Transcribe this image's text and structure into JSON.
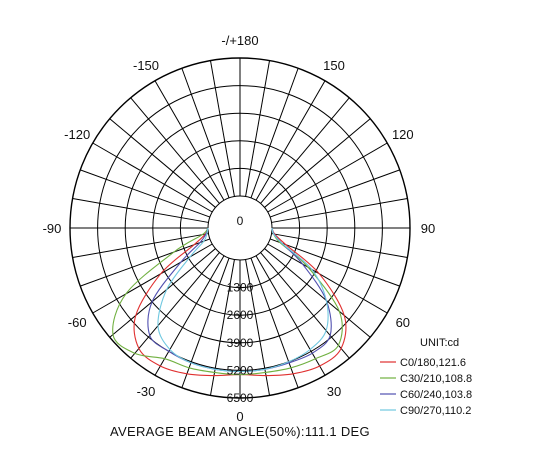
{
  "chart_data": {
    "type": "polar",
    "title": "",
    "unit_label": "UNIT:cd",
    "footer": "AVERAGE BEAM ANGLE(50%):111.1 DEG",
    "radial_ticks": [
      1300,
      2600,
      3900,
      5200,
      6500
    ],
    "radial_tick_labels": [
      "1300",
      "2600",
      "3900",
      "5200",
      "6500"
    ],
    "rmax": 6500,
    "angle_labels": [
      {
        "angle": 0,
        "label": "0"
      },
      {
        "angle": 30,
        "label": "30"
      },
      {
        "angle": -30,
        "label": "-30"
      },
      {
        "angle": 60,
        "label": "60"
      },
      {
        "angle": -60,
        "label": "-60"
      },
      {
        "angle": 90,
        "label": "90"
      },
      {
        "angle": -90,
        "label": "-90"
      },
      {
        "angle": 120,
        "label": "120"
      },
      {
        "angle": -120,
        "label": "-120"
      },
      {
        "angle": 150,
        "label": "150"
      },
      {
        "angle": -150,
        "label": "-150"
      },
      {
        "angle": 180,
        "label": "-/+180"
      }
    ],
    "center_label": "0",
    "angles": [
      -90,
      -80,
      -70,
      -60,
      -50,
      -40,
      -30,
      -20,
      -10,
      0,
      10,
      20,
      30,
      40,
      50,
      60,
      70,
      80,
      90
    ],
    "series": [
      {
        "name": "C0/180,121.6",
        "color": "#e03030",
        "values": [
          0,
          150,
          800,
          2800,
          4900,
          5900,
          6000,
          5800,
          5550,
          5400,
          5550,
          5800,
          6000,
          5900,
          4900,
          2800,
          800,
          150,
          0
        ]
      },
      {
        "name": "C30/210,108.8",
        "color": "#70b040",
        "values": [
          0,
          300,
          1800,
          4700,
          6300,
          6200,
          5600,
          5500,
          5400,
          5400,
          5400,
          5500,
          5600,
          5700,
          4600,
          2200,
          500,
          100,
          0
        ]
      },
      {
        "name": "C60/240,103.8",
        "color": "#5050b0",
        "values": [
          0,
          120,
          500,
          1700,
          3900,
          5100,
          5200,
          5250,
          5250,
          5250,
          5250,
          5250,
          5300,
          5100,
          3800,
          1900,
          600,
          120,
          0
        ]
      },
      {
        "name": "C90/270,110.2",
        "color": "#70c8e0",
        "values": [
          0,
          80,
          300,
          1200,
          3000,
          4500,
          5100,
          5250,
          5250,
          5250,
          5250,
          5200,
          5100,
          4800,
          3800,
          2400,
          600,
          100,
          0
        ]
      }
    ]
  }
}
